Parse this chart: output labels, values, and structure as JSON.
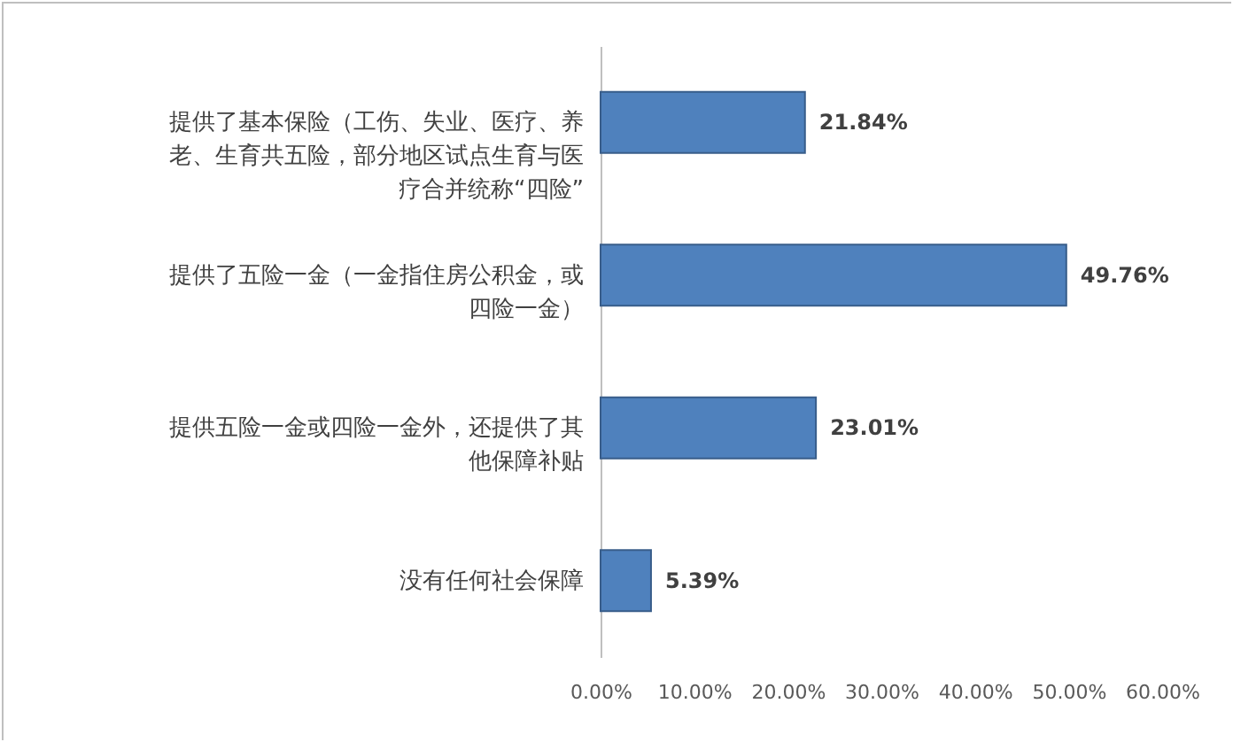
{
  "chart_data": {
    "type": "bar",
    "orientation": "horizontal",
    "categories": [
      "提供了基本保险（工伤、失业、医疗、养老、生育共五险，部分地区试点生育与医疗合并统称“四险”",
      "提供了五险一金（一金指住房公积金，或四险一金）",
      "提供五险一金或四险一金外，还提供了其他保障补贴",
      "没有任何社会保障"
    ],
    "values": [
      21.84,
      49.76,
      23.01,
      5.39
    ],
    "color": "#4f81bd",
    "value_labels": [
      "21.84%",
      "49.76%",
      "23.01%",
      "5.39%"
    ],
    "xlim": [
      0,
      60
    ],
    "xticks": [
      {
        "value": 0,
        "label": "0.00%"
      },
      {
        "value": 10,
        "label": "10.00%"
      },
      {
        "value": 20,
        "label": "20.00%"
      },
      {
        "value": 30,
        "label": "30.00%"
      },
      {
        "value": 40,
        "label": "40.00%"
      },
      {
        "value": 50,
        "label": "50.00%"
      },
      {
        "value": 60,
        "label": "60.00%"
      }
    ],
    "grid": false
  }
}
